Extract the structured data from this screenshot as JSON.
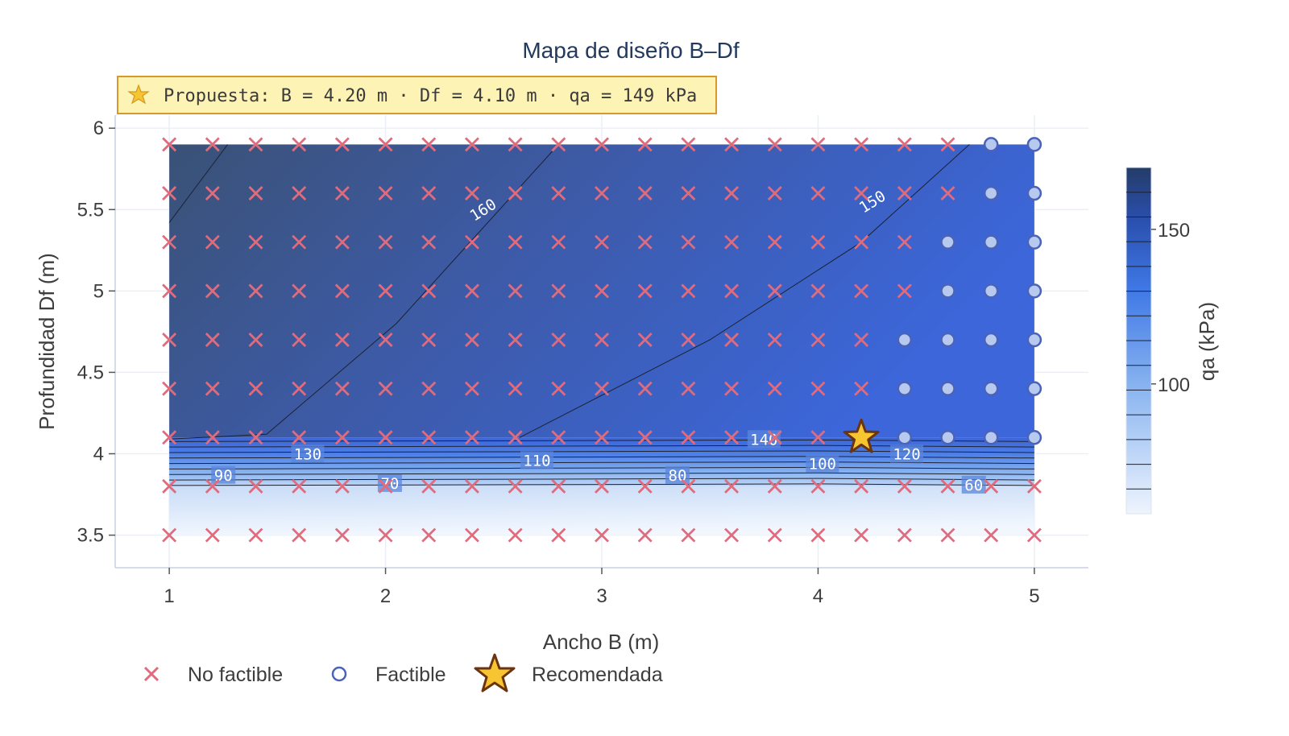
{
  "chart_data": {
    "type": "heatmap",
    "title": "Mapa de diseño B–Df",
    "xlabel": "Ancho B (m)",
    "ylabel": "Profundidad Df (m)",
    "xlim": [
      0.75,
      5.25
    ],
    "ylim": [
      3.3,
      6.08
    ],
    "x_ticks": [
      1,
      2,
      3,
      4,
      5
    ],
    "x_tick_labels": [
      "1",
      "2",
      "3",
      "4",
      "5"
    ],
    "y_ticks": [
      3.5,
      4,
      4.5,
      5,
      5.5,
      6
    ],
    "y_tick_labels": [
      "3.5",
      "4",
      "4.5",
      "5",
      "5.5",
      "6"
    ],
    "grid": true,
    "B_values": [
      1.0,
      1.2,
      1.4,
      1.6,
      1.8,
      2.0,
      2.2,
      2.4,
      2.6,
      2.8,
      3.0,
      3.2,
      3.4,
      3.6,
      3.8,
      4.0,
      4.2,
      4.4,
      4.6,
      4.8,
      5.0
    ],
    "Df_values": [
      3.5,
      3.8,
      4.1,
      4.4,
      4.7,
      5.0,
      5.3,
      5.6,
      5.9
    ],
    "colorbar": {
      "title": "qa (kPa)",
      "range": [
        58,
        170
      ],
      "tick_values": [
        100,
        150
      ],
      "tick_labels": [
        "100",
        "150"
      ],
      "levels": 14
    },
    "contour_labels": [
      {
        "text": "160",
        "B": 2.45,
        "Df": 5.5
      },
      {
        "text": "150",
        "B": 4.25,
        "Df": 5.55
      },
      {
        "text": "140",
        "B": 3.75,
        "Df": 4.09
      },
      {
        "text": "130",
        "B": 1.64,
        "Df": 4.0
      },
      {
        "text": "120",
        "B": 4.41,
        "Df": 4.0
      },
      {
        "text": "110",
        "B": 2.7,
        "Df": 3.96
      },
      {
        "text": "100",
        "B": 4.02,
        "Df": 3.94
      },
      {
        "text": "90",
        "B": 1.25,
        "Df": 3.87
      },
      {
        "text": "80",
        "B": 3.35,
        "Df": 3.87
      },
      {
        "text": "70",
        "B": 2.02,
        "Df": 3.82
      },
      {
        "text": "60",
        "B": 4.72,
        "Df": 3.81
      }
    ],
    "series": [
      {
        "name": "No factible",
        "marker": "x",
        "color": "#e06b7d",
        "points_description": "grid points not listed as feasible"
      },
      {
        "name": "Factible",
        "marker": "circle",
        "color": "#4a63b8",
        "points": [
          [
            4.8,
            5.9
          ],
          [
            5.0,
            5.9
          ],
          [
            4.8,
            5.6
          ],
          [
            5.0,
            5.6
          ],
          [
            4.6,
            5.3
          ],
          [
            4.8,
            5.3
          ],
          [
            5.0,
            5.3
          ],
          [
            4.6,
            5.0
          ],
          [
            4.8,
            5.0
          ],
          [
            5.0,
            5.0
          ],
          [
            4.4,
            4.7
          ],
          [
            4.6,
            4.7
          ],
          [
            4.8,
            4.7
          ],
          [
            5.0,
            4.7
          ],
          [
            4.4,
            4.4
          ],
          [
            4.6,
            4.4
          ],
          [
            4.8,
            4.4
          ],
          [
            5.0,
            4.4
          ],
          [
            4.4,
            4.1
          ],
          [
            4.6,
            4.1
          ],
          [
            4.8,
            4.1
          ],
          [
            5.0,
            4.1
          ]
        ]
      },
      {
        "name": "Recomendada",
        "marker": "star",
        "color": "#f7c531",
        "points": [
          [
            4.2,
            4.1
          ]
        ]
      }
    ],
    "annotation": {
      "text": "Propuesta: B = 4.20 m · Df = 4.10 m · qa = 149 kPa",
      "icon": "star-icon"
    },
    "legend_position": "bottom-left"
  }
}
